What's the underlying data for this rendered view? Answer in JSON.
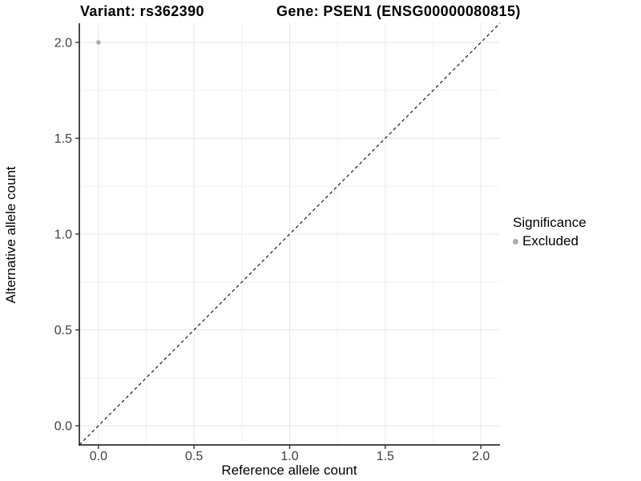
{
  "title": {
    "variant": "Variant: rs362390",
    "gene": "Gene: PSEN1 (ENSG00000080815)"
  },
  "legend": {
    "title": "Significance",
    "items": [
      {
        "label": "Excluded",
        "color": "#adadad"
      }
    ]
  },
  "chart_data": {
    "type": "scatter",
    "title": "Variant: rs362390    Gene: PSEN1 (ENSG00000080815)",
    "xlabel": "Reference allele count",
    "ylabel": "Alternative allele count",
    "xlim": [
      -0.1,
      2.1
    ],
    "ylim": [
      -0.1,
      2.1
    ],
    "x_ticks": [
      0.0,
      0.5,
      1.0,
      1.5,
      2.0
    ],
    "y_ticks": [
      0.0,
      0.5,
      1.0,
      1.5,
      2.0
    ],
    "x_tick_labels": [
      "0.0",
      "0.5",
      "1.0",
      "1.5",
      "2.0"
    ],
    "y_tick_labels": [
      "0.0",
      "0.5",
      "1.0",
      "1.5",
      "2.0"
    ],
    "minor_ticks": [
      0.25,
      0.75,
      1.25,
      1.75
    ],
    "grid": "major+minor",
    "legend_position": "right",
    "series": [
      {
        "name": "Excluded",
        "color": "#adadad",
        "points": [
          {
            "x": 0.0,
            "y": 2.0
          }
        ]
      }
    ],
    "reference_line": {
      "type": "identity",
      "equation": "y = x",
      "style": "dashed",
      "color": "#1a1a1a"
    }
  },
  "colors": {
    "background": "#ffffff",
    "grid_major": "#e7e7e7",
    "grid_minor": "#f2f2f2",
    "axis_line": "#333333",
    "tick_mark": "#333333",
    "tick_label": "#404040",
    "point": "#adadad",
    "text": "#000000"
  }
}
